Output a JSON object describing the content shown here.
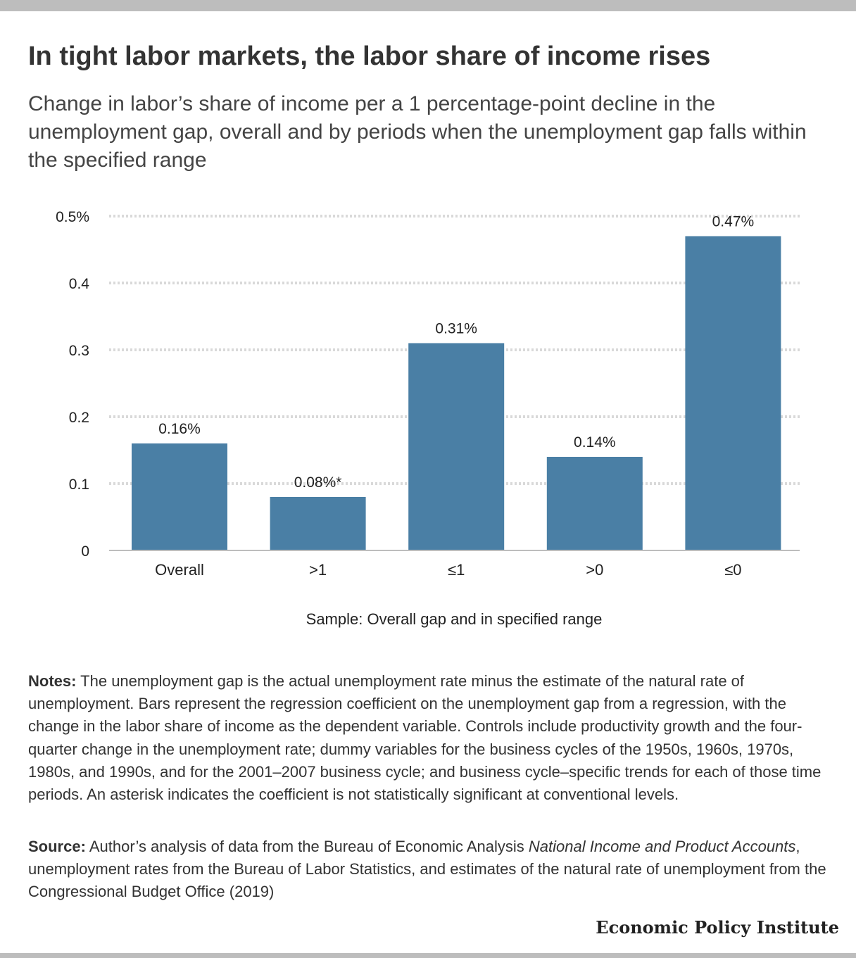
{
  "header": {
    "title": "In tight labor markets, the labor share of income rises",
    "subtitle": "Change in labor’s share of income per a 1 percentage-point decline in the unemployment gap, overall and by periods when the unemployment gap falls within the specified range"
  },
  "chart_data": {
    "type": "bar",
    "categories": [
      "Overall",
      ">1",
      "≤1",
      ">0",
      "≤0"
    ],
    "values": [
      0.16,
      0.08,
      0.31,
      0.14,
      0.47
    ],
    "data_labels": [
      "0.16%",
      "0.08%*",
      "0.31%",
      "0.14%",
      "0.47%"
    ],
    "ylim": [
      0,
      0.5
    ],
    "yticks": [
      0,
      0.1,
      0.2,
      0.3,
      0.4,
      0.5
    ],
    "ytick_labels": [
      "0",
      "0.1",
      "0.2",
      "0.3",
      "0.4",
      "0.5%"
    ],
    "xlabel": "Sample: Overall gap and in specified range",
    "ylabel": "",
    "grid": true,
    "bar_color": "#4a7fa5",
    "grid_color": "#d9d9d9",
    "axis_color": "#bdbdbd"
  },
  "notes": {
    "label": "Notes:",
    "text": " The unemployment gap is the actual unemployment rate minus the estimate of the natural rate of unemployment. Bars represent the regression coefficient on the unemployment gap from a regression, with the change in the labor share of income as the dependent variable. Controls include productivity growth and the four-quarter change in the unemployment rate; dummy variables for the business cycles of the 1950s, 1960s, 1970s, 1980s, and 1990s, and for the 2001–2007 business cycle; and business cycle–specific trends for each of those time periods. An asterisk indicates the coefficient is not statistically significant at conventional levels."
  },
  "source": {
    "label": "Source:",
    "text_before": " Author’s analysis of data from the Bureau of Economic Analysis ",
    "italic": "National Income and Product Accounts",
    "text_after": ", unemployment rates from the Bureau of Labor Statistics, and estimates of the natural rate of unemployment from the Congressional Budget Office (2019)"
  },
  "branding": {
    "logo_text": "Economic Policy Institute"
  }
}
